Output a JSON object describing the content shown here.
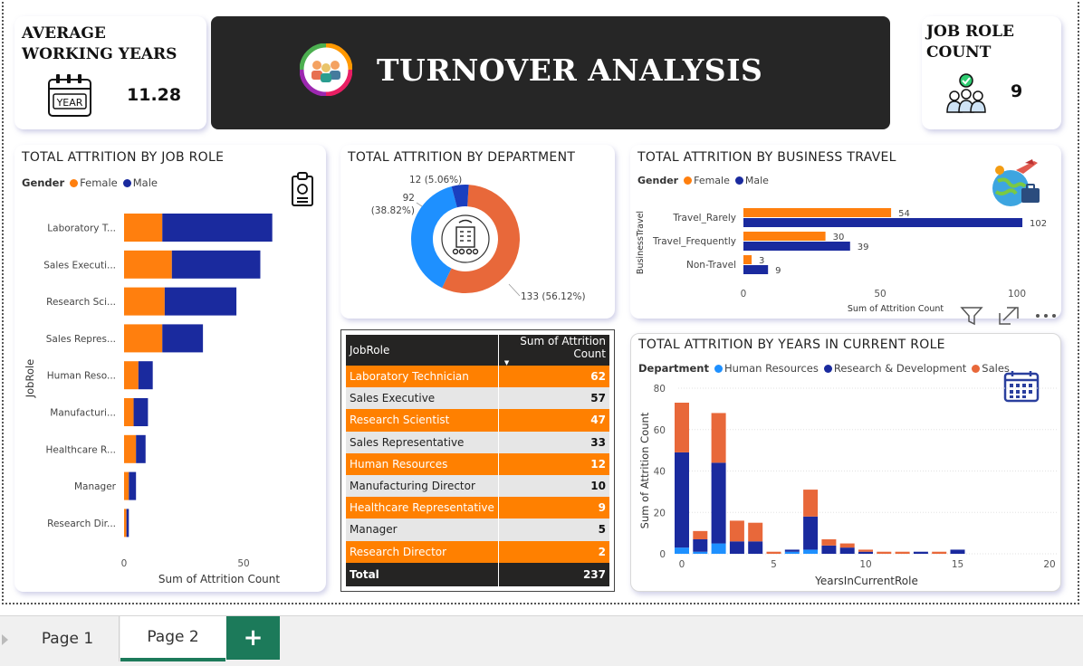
{
  "kpi_avg": {
    "title_line1": "AVERAGE",
    "title_line2": "WORKING YEARS",
    "value": "11.28",
    "icon_label": "YEAR",
    "icon": "calendar-year-icon"
  },
  "banner": {
    "title": "TURNOVER ANALYSIS",
    "icon": "team-logo-icon"
  },
  "kpi_role": {
    "title_line1": "JOB ROLE",
    "title_line2": "COUNT",
    "value": "9",
    "icon": "team-check-icon"
  },
  "colors": {
    "female": "#ff7f0e",
    "male": "#1a2a9e",
    "hr": "#1e90ff",
    "rd": "#1a2a9e",
    "sales": "#e8683a",
    "orange_row": "#ff8000"
  },
  "job_role_chart": {
    "title": "TOTAL ATTRITION BY JOB ROLE",
    "legend_label": "Gender",
    "legend_female": "Female",
    "legend_male": "Male",
    "ylabel": "JobRole",
    "xlabel": "Sum of Attrition Count",
    "tick_labels": [
      "0",
      "50"
    ]
  },
  "department_chart": {
    "title": "TOTAL ATTRITION BY DEPARTMENT",
    "label_small": "12 (5.06%)",
    "label_left_1": "92",
    "label_left_2": "(38.82%)",
    "label_right": "133 (56.12%)"
  },
  "travel_chart": {
    "title": "TOTAL ATTRITION BY BUSINESS TRAVEL",
    "legend_label": "Gender",
    "legend_female": "Female",
    "legend_male": "Male",
    "ylabel": "BusinessTravel",
    "xlabel": "Sum of Attrition Count",
    "tick_labels": [
      "0",
      "50",
      "100"
    ]
  },
  "years_chart": {
    "title": "TOTAL ATTRITION BY YEARS IN CURRENT ROLE",
    "legend_label": "Department",
    "legend_hr": "Human Resources",
    "legend_rd": "Research & Development",
    "legend_sales": "Sales",
    "ylabel": "Sum of Attrition Count",
    "xlabel": "YearsInCurrentRole",
    "y_ticks": [
      "0",
      "20",
      "40",
      "60",
      "80"
    ],
    "x_ticks": [
      "0",
      "5",
      "10",
      "15",
      "20"
    ]
  },
  "chart_data": [
    {
      "type": "bar",
      "orientation": "horizontal",
      "title": "TOTAL ATTRITION BY JOB ROLE",
      "xlabel": "Sum of Attrition Count",
      "ylabel": "JobRole",
      "categories": [
        "Laboratory T...",
        "Sales Executi...",
        "Research Sci...",
        "Sales Repres...",
        "Human Reso...",
        "Manufacturi...",
        "Healthcare R...",
        "Manager",
        "Research Dir..."
      ],
      "series": [
        {
          "name": "Female",
          "values": [
            16,
            20,
            17,
            16,
            6,
            4,
            5,
            2,
            1
          ]
        },
        {
          "name": "Male",
          "values": [
            46,
            37,
            30,
            17,
            6,
            6,
            4,
            3,
            1
          ]
        }
      ],
      "stacked": true,
      "xlim": [
        0,
        62
      ],
      "legend": "top-left"
    },
    {
      "type": "pie",
      "variant": "donut",
      "title": "TOTAL ATTRITION BY DEPARTMENT",
      "values": [
        133,
        92,
        12
      ]
    },
    {
      "type": "bar",
      "orientation": "horizontal",
      "title": "TOTAL ATTRITION BY BUSINESS TRAVEL",
      "xlabel": "Sum of Attrition Count",
      "ylabel": "BusinessTravel",
      "categories": [
        "Travel_Rarely",
        "Travel_Frequently",
        "Non-Travel"
      ],
      "series": [
        {
          "name": "Female",
          "values": [
            54,
            30,
            3
          ],
          "labels": [
            "54",
            "30",
            "3"
          ]
        },
        {
          "name": "Male",
          "values": [
            102,
            39,
            9
          ],
          "labels": [
            "102",
            "39",
            "9"
          ]
        }
      ],
      "xlim": [
        0,
        110
      ],
      "legend": "top-left"
    },
    {
      "type": "bar",
      "title": "TOTAL ATTRITION BY YEARS IN CURRENT ROLE",
      "xlabel": "YearsInCurrentRole",
      "ylabel": "Sum of Attrition Count",
      "x": [
        0,
        1,
        2,
        3,
        4,
        5,
        6,
        7,
        8,
        9,
        10,
        11,
        12,
        13,
        14,
        15
      ],
      "series": [
        {
          "name": "Human Resources",
          "values": [
            3,
            1,
            5,
            0,
            0,
            0,
            1,
            2,
            0,
            0,
            0,
            0,
            0,
            0,
            0,
            0
          ]
        },
        {
          "name": "Research & Development",
          "values": [
            46,
            6,
            39,
            6,
            6,
            0,
            1,
            16,
            4,
            3,
            1,
            0,
            0,
            1,
            0,
            2
          ]
        },
        {
          "name": "Sales",
          "values": [
            24,
            4,
            24,
            10,
            9,
            1,
            0,
            13,
            3,
            2,
            1,
            1,
            1,
            0,
            1,
            0
          ]
        }
      ],
      "stacked": true,
      "ylim": [
        0,
        80
      ],
      "xlim": [
        0,
        20
      ],
      "legend": "top-left"
    },
    {
      "type": "table",
      "columns": [
        "JobRole",
        "Sum of Attrition Count"
      ],
      "rows": [
        [
          "Laboratory Technician",
          "62"
        ],
        [
          "Sales Executive",
          "57"
        ],
        [
          "Research Scientist",
          "47"
        ],
        [
          "Sales Representative",
          "33"
        ],
        [
          "Human Resources",
          "12"
        ],
        [
          "Manufacturing Director",
          "10"
        ],
        [
          "Healthcare Representative",
          "9"
        ],
        [
          "Manager",
          "5"
        ],
        [
          "Research Director",
          "2"
        ]
      ],
      "total_label": "Total",
      "total_value": "237"
    }
  ],
  "tabs": {
    "page1": "Page 1",
    "page2": "Page 2",
    "add": "+"
  }
}
